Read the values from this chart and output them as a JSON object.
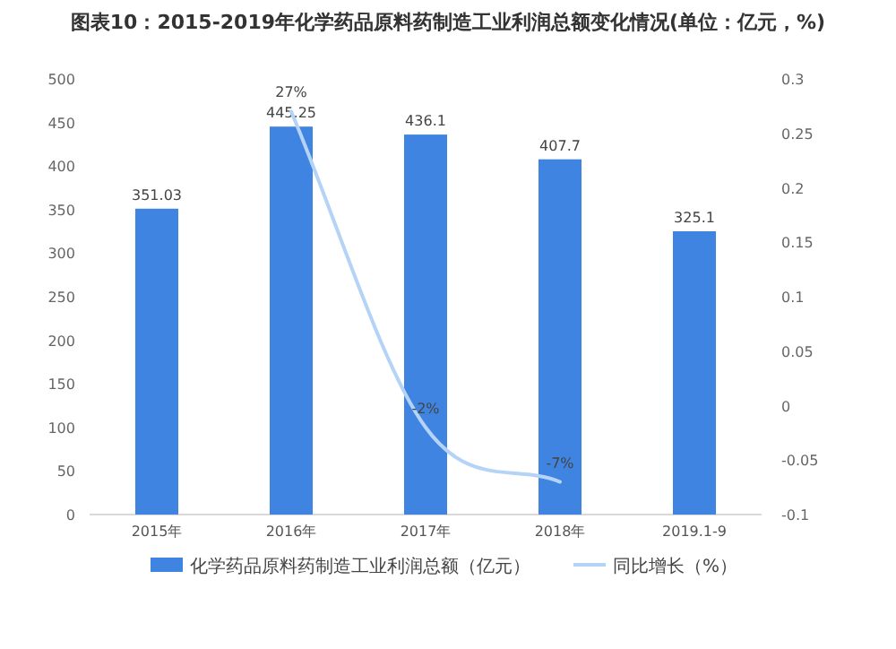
{
  "chart_data": {
    "type": "bar",
    "title": "图表10：2015-2019年化学药品原料药制造工业利润总额变化情况(单位：亿元，%)",
    "categories": [
      "2015年",
      "2016年",
      "2017年",
      "2018年",
      "2019.1-9"
    ],
    "series": [
      {
        "name": "化学药品原料药制造工业利润总额（亿元）",
        "color": "#3f84e0",
        "values": [
          351.03,
          445.25,
          436.1,
          407.7,
          325.1
        ],
        "value_labels": [
          "351.03",
          "445.25",
          "436.1",
          "407.7",
          "325.1"
        ]
      },
      {
        "name": "同比增长（%）",
        "type": "line",
        "axis": "y2",
        "color": "#b4d3f7",
        "marker": "none",
        "values": [
          null,
          0.27,
          -0.02,
          -0.07,
          null
        ],
        "value_labels": [
          null,
          "27%",
          "-2%",
          "-7%",
          null
        ]
      }
    ],
    "ylim": [
      0,
      500
    ],
    "yticks": [
      0,
      50,
      100,
      150,
      200,
      250,
      300,
      350,
      400,
      450,
      500
    ],
    "y2lim": [
      -0.1,
      0.3
    ],
    "y2ticks": [
      -0.1,
      -0.05,
      0,
      0.05,
      0.1,
      0.15,
      0.2,
      0.25,
      0.3
    ],
    "grid": false,
    "legend": "bottom"
  }
}
